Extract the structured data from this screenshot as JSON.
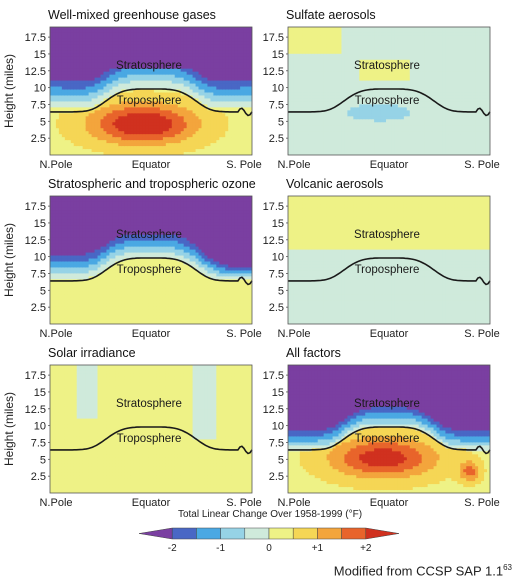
{
  "chart_data": [
    {
      "type": "heatmap",
      "title": "Well-mixed greenhouse gases",
      "ylabel": "Height (miles)",
      "yticks": [
        "17.5",
        "15",
        "12.5",
        "10",
        "7.5",
        "5",
        "2.5"
      ],
      "xticks": [
        "N.Pole",
        "Equator",
        "S. Pole"
      ],
      "annotations": [
        "Stratosphere",
        "Troposphere"
      ],
      "pattern": "strong tropospheric warming up to +2 (max near equator ~4 miles), stratospheric cooling near -2 above 12 miles"
    },
    {
      "type": "heatmap",
      "title": "Sulfate aerosols",
      "ylabel": "",
      "yticks": [
        "17.5",
        "15",
        "12.5",
        "10",
        "7.5",
        "5",
        "2.5"
      ],
      "xticks": [
        "N.Pole",
        "Equator",
        "S. Pole"
      ],
      "annotations": [
        "Stratosphere",
        "Troposphere"
      ],
      "pattern": "weak tropospheric cooling around -0.5, near zero elsewhere"
    },
    {
      "type": "heatmap",
      "title": "Stratospheric and tropospheric ozone",
      "ylabel": "Height (miles)",
      "yticks": [
        "17.5",
        "15",
        "12.5",
        "10",
        "7.5",
        "5",
        "2.5"
      ],
      "xticks": [
        "N.Pole",
        "Equator",
        "S. Pole"
      ],
      "annotations": [
        "Stratosphere",
        "Troposphere"
      ],
      "pattern": "stratospheric cooling down to -2 near the southern polar region, slight tropospheric warming"
    },
    {
      "type": "heatmap",
      "title": "Volcanic aerosols",
      "ylabel": "",
      "yticks": [
        "17.5",
        "15",
        "12.5",
        "10",
        "7.5",
        "5",
        "2.5"
      ],
      "xticks": [
        "N.Pole",
        "Equator",
        "S. Pole"
      ],
      "annotations": [
        "Stratosphere",
        "Troposphere"
      ],
      "pattern": "slight stratospheric warming, near zero in troposphere"
    },
    {
      "type": "heatmap",
      "title": "Solar irradiance",
      "ylabel": "Height (miles)",
      "yticks": [
        "17.5",
        "15",
        "12.5",
        "10",
        "7.5",
        "5",
        "2.5"
      ],
      "xticks": [
        "N.Pole",
        "Equator",
        "S. Pole"
      ],
      "annotations": [
        "Stratosphere",
        "Troposphere"
      ],
      "pattern": "near-uniform slight warming around +0.3"
    },
    {
      "type": "heatmap",
      "title": "All factors",
      "ylabel": "",
      "yticks": [
        "17.5",
        "15",
        "12.5",
        "10",
        "7.5",
        "5",
        "2.5"
      ],
      "xticks": [
        "N.Pole",
        "Equator",
        "S. Pole"
      ],
      "annotations": [
        "Stratosphere",
        "Troposphere"
      ],
      "pattern": "tropospheric warming up to +2 near equator, stratospheric cooling down to -2"
    }
  ],
  "colorbar": {
    "title": "Total Linear Change Over 1958-1999 (°F)",
    "tick_labels": [
      "-2",
      "-1",
      "0",
      "+1",
      "+2"
    ],
    "range": [
      -2.5,
      2.5
    ],
    "colors": [
      "#7a3fa1",
      "#4967c5",
      "#4aa8e3",
      "#96d3e6",
      "#cfeadb",
      "#eef286",
      "#f5d655",
      "#f3a53c",
      "#e8642b",
      "#d0311f"
    ]
  },
  "credit": {
    "text": "Modified from CCSP SAP 1.1",
    "ref": "63"
  }
}
